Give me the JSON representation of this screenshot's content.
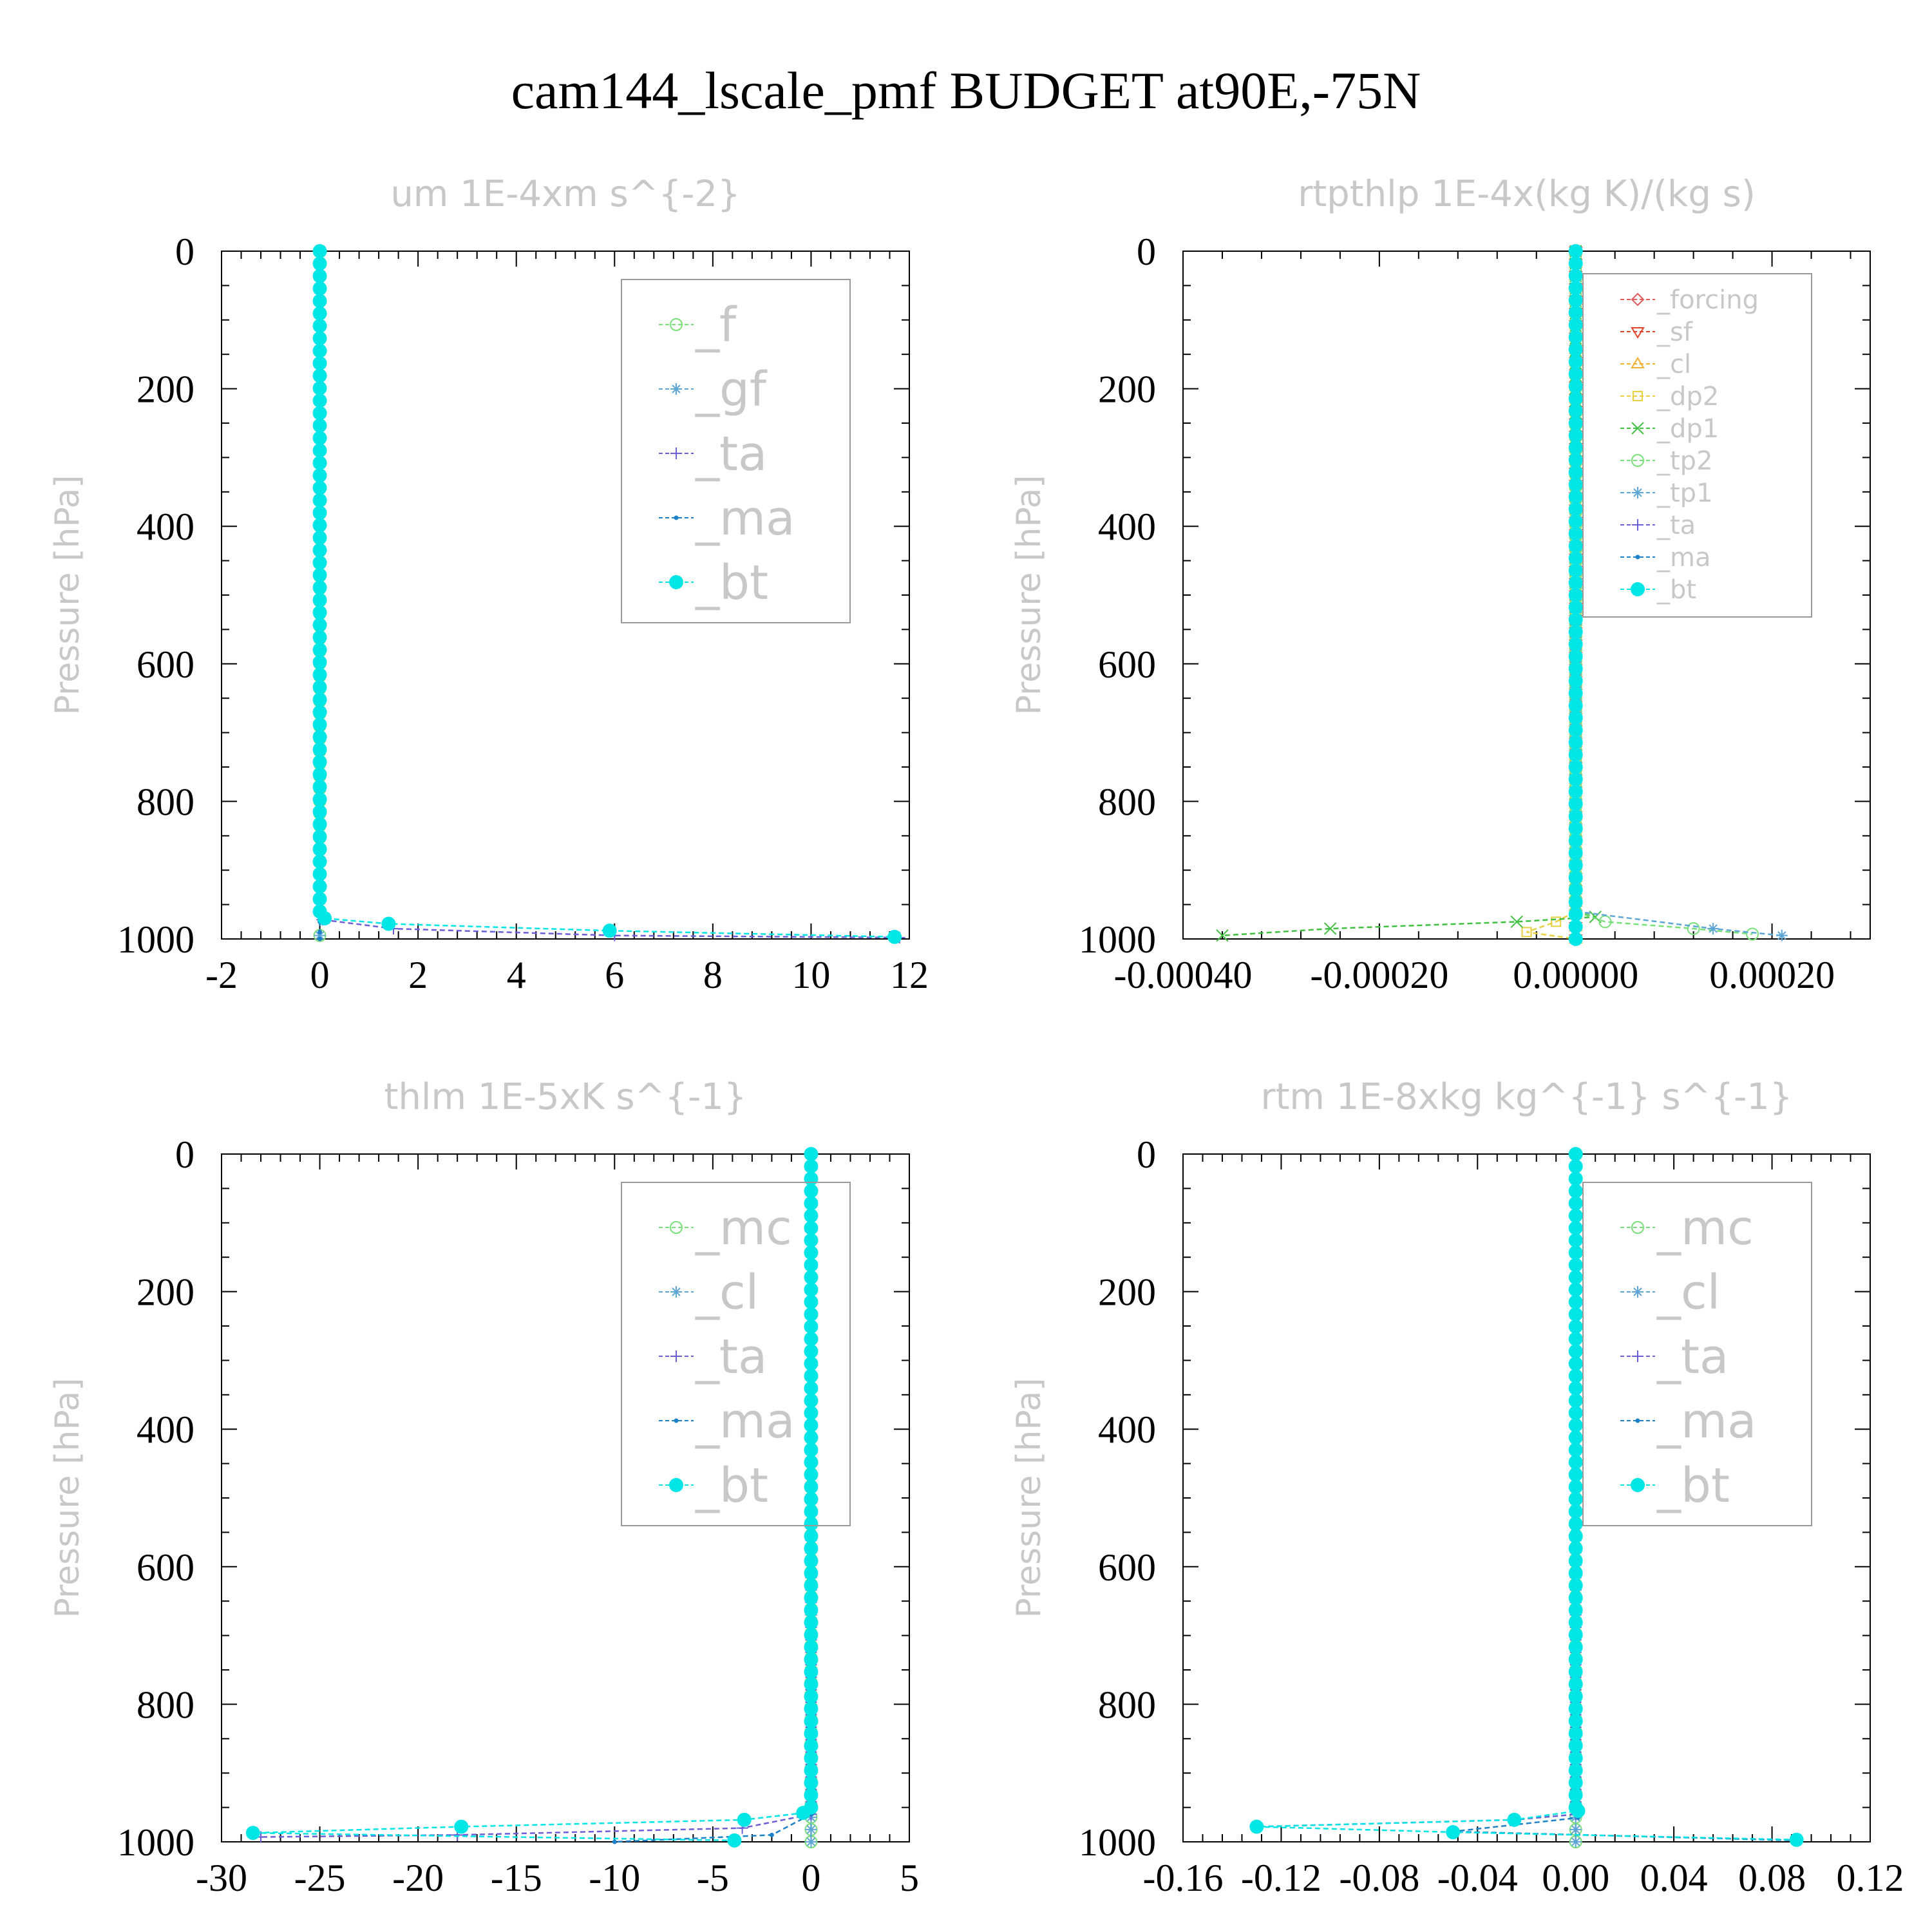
{
  "figure": {
    "title": "cam144_lscale_pmf  BUDGET at90E,-75N"
  },
  "chart_data": [
    {
      "type": "line",
      "title": "um  1E-4xm s^{-2}",
      "ylabel": "Pressure [hPa]",
      "xlabel": "",
      "xlim": [
        -2,
        12
      ],
      "ylim": [
        0,
        1000
      ],
      "y_inverted": true,
      "xticks": [
        "-2",
        "0",
        "2",
        "4",
        "6",
        "8",
        "10",
        "12"
      ],
      "yticks": [
        "0",
        "200",
        "400",
        "600",
        "800",
        "1000"
      ],
      "legend_position": "top-right",
      "legend_font_size": "large",
      "series": [
        {
          "name": "_f",
          "color": "#79e079",
          "marker": "circle-open",
          "points": [
            [
              0,
              0
            ],
            [
              0,
              200
            ],
            [
              0,
              400
            ],
            [
              0,
              600
            ],
            [
              0,
              800
            ],
            [
              0,
              960
            ],
            [
              0,
              995
            ]
          ]
        },
        {
          "name": "_gf",
          "color": "#5ea6d6",
          "marker": "asterisk",
          "points": [
            [
              0,
              0
            ],
            [
              0,
              200
            ],
            [
              0,
              400
            ],
            [
              0,
              600
            ],
            [
              0,
              800
            ],
            [
              0,
              960
            ],
            [
              0,
              995
            ]
          ]
        },
        {
          "name": "_ta",
          "color": "#6a5fd6",
          "marker": "plus",
          "points": [
            [
              0,
              0
            ],
            [
              0,
              960
            ],
            [
              0.05,
              972
            ],
            [
              1.5,
              985
            ],
            [
              6,
              995
            ],
            [
              11.8,
              998
            ]
          ]
        },
        {
          "name": "_ma",
          "color": "#1b82c9",
          "marker": "dot",
          "points": [
            [
              0,
              0
            ],
            [
              0,
              960
            ],
            [
              0,
              975
            ],
            [
              0,
              990
            ],
            [
              0,
              1000
            ]
          ]
        },
        {
          "name": "_bt",
          "color": "#00e5e5",
          "marker": "filled-circle",
          "points": [
            [
              0,
              0
            ],
            [
              0,
              960
            ],
            [
              0.1,
              970
            ],
            [
              1.4,
              978
            ],
            [
              5.9,
              988
            ],
            [
              11.7,
              997
            ]
          ]
        }
      ]
    },
    {
      "type": "line",
      "title": "rtpthlp  1E-4x(kg K)/(kg s)",
      "ylabel": "Pressure [hPa]",
      "xlabel": "",
      "xlim": [
        -0.0004,
        0.0003
      ],
      "ylim": [
        0,
        1000
      ],
      "y_inverted": true,
      "xticks": [
        "-0.00040",
        "-0.00020",
        "0.00000",
        "0.00020"
      ],
      "yticks": [
        "0",
        "200",
        "400",
        "600",
        "800",
        "1000"
      ],
      "legend_position": "top-right",
      "legend_font_size": "small",
      "series": [
        {
          "name": "_forcing",
          "color": "#e05a5a",
          "marker": "diamond-open",
          "points": [
            [
              0,
              0
            ],
            [
              0,
              1000
            ]
          ]
        },
        {
          "name": "_sf",
          "color": "#e0442a",
          "marker": "triangle-down-open",
          "points": [
            [
              0,
              0
            ],
            [
              0,
              1000
            ]
          ]
        },
        {
          "name": "_cl",
          "color": "#f0b030",
          "marker": "triangle-up-open",
          "points": [
            [
              0,
              0
            ],
            [
              0,
              1000
            ]
          ]
        },
        {
          "name": "_dp2",
          "color": "#e8d040",
          "marker": "square-open",
          "points": [
            [
              0,
              0
            ],
            [
              0,
              960
            ],
            [
              -2e-05,
              975
            ],
            [
              -5e-05,
              990
            ],
            [
              0,
              1000
            ]
          ]
        },
        {
          "name": "_dp1",
          "color": "#40c040",
          "marker": "cross",
          "points": [
            [
              0,
              0
            ],
            [
              0,
              960
            ],
            [
              2e-05,
              968
            ],
            [
              -6e-05,
              975
            ],
            [
              -0.00025,
              985
            ],
            [
              -0.00036,
              995
            ]
          ]
        },
        {
          "name": "_tp2",
          "color": "#79e079",
          "marker": "circle-open",
          "points": [
            [
              0,
              0
            ],
            [
              0,
              960
            ],
            [
              3e-05,
              975
            ],
            [
              0.00012,
              985
            ],
            [
              0.00018,
              993
            ]
          ]
        },
        {
          "name": "_tp1",
          "color": "#5ea6d6",
          "marker": "asterisk",
          "points": [
            [
              0,
              0
            ],
            [
              0,
              960
            ],
            [
              0.00014,
              985
            ],
            [
              0.00021,
              995
            ]
          ]
        },
        {
          "name": "_ta",
          "color": "#6a5fd6",
          "marker": "plus",
          "points": [
            [
              0,
              0
            ],
            [
              0,
              1000
            ]
          ]
        },
        {
          "name": "_ma",
          "color": "#1b82c9",
          "marker": "dot",
          "points": [
            [
              0,
              0
            ],
            [
              0,
              1000
            ]
          ]
        },
        {
          "name": "_bt",
          "color": "#00e5e5",
          "marker": "filled-circle",
          "points": [
            [
              0,
              0
            ],
            [
              0,
              1000
            ]
          ]
        }
      ]
    },
    {
      "type": "line",
      "title": "thlm  1E-5xK s^{-1}",
      "ylabel": "Pressure [hPa]",
      "xlabel": "",
      "xlim": [
        -30,
        5
      ],
      "ylim": [
        0,
        1000
      ],
      "y_inverted": true,
      "xticks": [
        "-30",
        "-25",
        "-20",
        "-15",
        "-10",
        "-5",
        "0",
        "5"
      ],
      "yticks": [
        "0",
        "200",
        "400",
        "600",
        "800",
        "1000"
      ],
      "legend_position": "top-right",
      "legend_font_size": "large",
      "series": [
        {
          "name": "_mc",
          "color": "#79e079",
          "marker": "circle-open",
          "points": [
            [
              0,
              0
            ],
            [
              0,
              1000
            ]
          ]
        },
        {
          "name": "_cl",
          "color": "#5ea6d6",
          "marker": "asterisk",
          "points": [
            [
              0,
              0
            ],
            [
              0,
              1000
            ]
          ]
        },
        {
          "name": "_ta",
          "color": "#6a5fd6",
          "marker": "plus",
          "points": [
            [
              0,
              0
            ],
            [
              0,
              960
            ],
            [
              -3.5,
              980
            ],
            [
              -18,
              990
            ],
            [
              -28,
              993
            ]
          ]
        },
        {
          "name": "_ma",
          "color": "#1b82c9",
          "marker": "dot",
          "points": [
            [
              0,
              0
            ],
            [
              0,
              960
            ],
            [
              -2,
              990
            ],
            [
              -10,
              1000
            ]
          ]
        },
        {
          "name": "_bt",
          "color": "#00e5e5",
          "marker": "filled-circle",
          "points": [
            [
              0,
              0
            ],
            [
              0,
              950
            ],
            [
              -0.4,
              958
            ],
            [
              -3.4,
              968
            ],
            [
              -17.8,
              978
            ],
            [
              -28.4,
              987
            ],
            [
              -3.9,
              998
            ]
          ]
        }
      ]
    },
    {
      "type": "line",
      "title": "rtm  1E-8xkg kg^{-1} s^{-1}",
      "ylabel": "Pressure [hPa]",
      "xlabel": "",
      "xlim": [
        -0.16,
        0.12
      ],
      "ylim": [
        0,
        1000
      ],
      "y_inverted": true,
      "xticks": [
        "-0.16",
        "-0.12",
        "-0.08",
        "-0.04",
        "0.00",
        "0.04",
        "0.08",
        "0.12"
      ],
      "yticks": [
        "0",
        "200",
        "400",
        "600",
        "800",
        "1000"
      ],
      "legend_position": "top-right",
      "legend_font_size": "large",
      "series": [
        {
          "name": "_mc",
          "color": "#79e079",
          "marker": "circle-open",
          "points": [
            [
              0,
              0
            ],
            [
              0,
              1000
            ]
          ]
        },
        {
          "name": "_cl",
          "color": "#5ea6d6",
          "marker": "asterisk",
          "points": [
            [
              0,
              0
            ],
            [
              0,
              1000
            ]
          ]
        },
        {
          "name": "_ta",
          "color": "#6a5fd6",
          "marker": "plus",
          "points": [
            [
              0,
              0
            ],
            [
              0,
              960
            ],
            [
              -0.025,
              968
            ],
            [
              -0.13,
              978
            ]
          ]
        },
        {
          "name": "_ma",
          "color": "#1b82c9",
          "marker": "dot",
          "points": [
            [
              0,
              0
            ],
            [
              0,
              960
            ],
            [
              0.001,
              965
            ],
            [
              -0.05,
              985
            ],
            [
              0.09,
              998
            ]
          ]
        },
        {
          "name": "_bt",
          "color": "#00e5e5",
          "marker": "filled-circle",
          "points": [
            [
              0,
              0
            ],
            [
              0,
              950
            ],
            [
              0.001,
              955
            ],
            [
              -0.025,
              968
            ],
            [
              -0.13,
              978
            ],
            [
              -0.05,
              986
            ],
            [
              0.09,
              997
            ]
          ]
        }
      ]
    }
  ]
}
